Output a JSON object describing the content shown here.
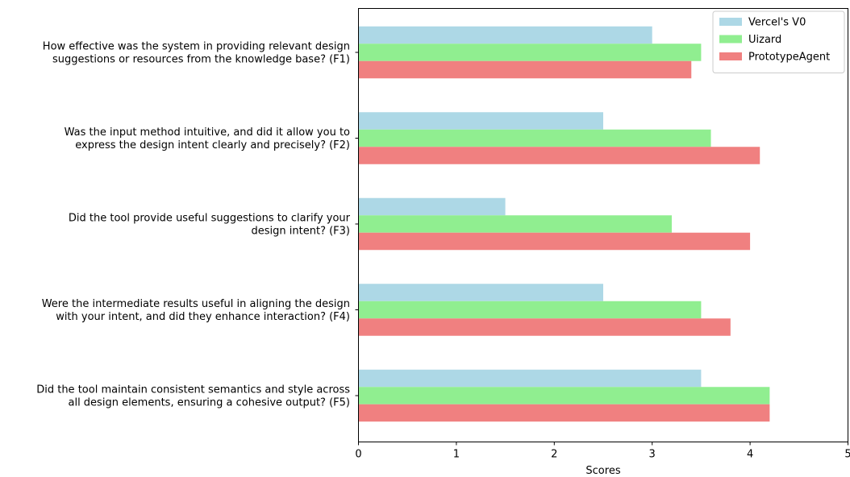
{
  "chart_data": {
    "type": "bar",
    "orientation": "horizontal",
    "title": "",
    "xlabel": "Scores",
    "ylabel": "",
    "xlim": [
      0,
      5
    ],
    "xticks": [
      "0",
      "1",
      "2",
      "3",
      "4",
      "5"
    ],
    "grid": false,
    "legend_position": "top-right",
    "categories": [
      [
        "How effective was the system in providing relevant design",
        "suggestions or resources from the knowledge base? (F1)"
      ],
      [
        "Was the input method intuitive, and did it allow you to",
        "express the design intent clearly and precisely? (F2)"
      ],
      [
        "Did the tool provide useful suggestions to clarify your",
        "design intent? (F3)"
      ],
      [
        "Were the intermediate results useful in aligning the design",
        "with your intent, and did they enhance interaction? (F4)"
      ],
      [
        "Did the tool maintain consistent semantics and style across",
        "all design elements, ensuring a cohesive output? (F5)"
      ]
    ],
    "series": [
      {
        "name": "Vercel's V0",
        "color": "#add8e6",
        "values": [
          3.0,
          2.5,
          1.5,
          2.5,
          3.5
        ]
      },
      {
        "name": "Uizard",
        "color": "#90ee90",
        "values": [
          3.5,
          3.6,
          3.2,
          3.5,
          4.2
        ]
      },
      {
        "name": "PrototypeAgent",
        "color": "#f08080",
        "values": [
          3.4,
          4.1,
          4.0,
          3.8,
          4.2
        ]
      }
    ]
  }
}
